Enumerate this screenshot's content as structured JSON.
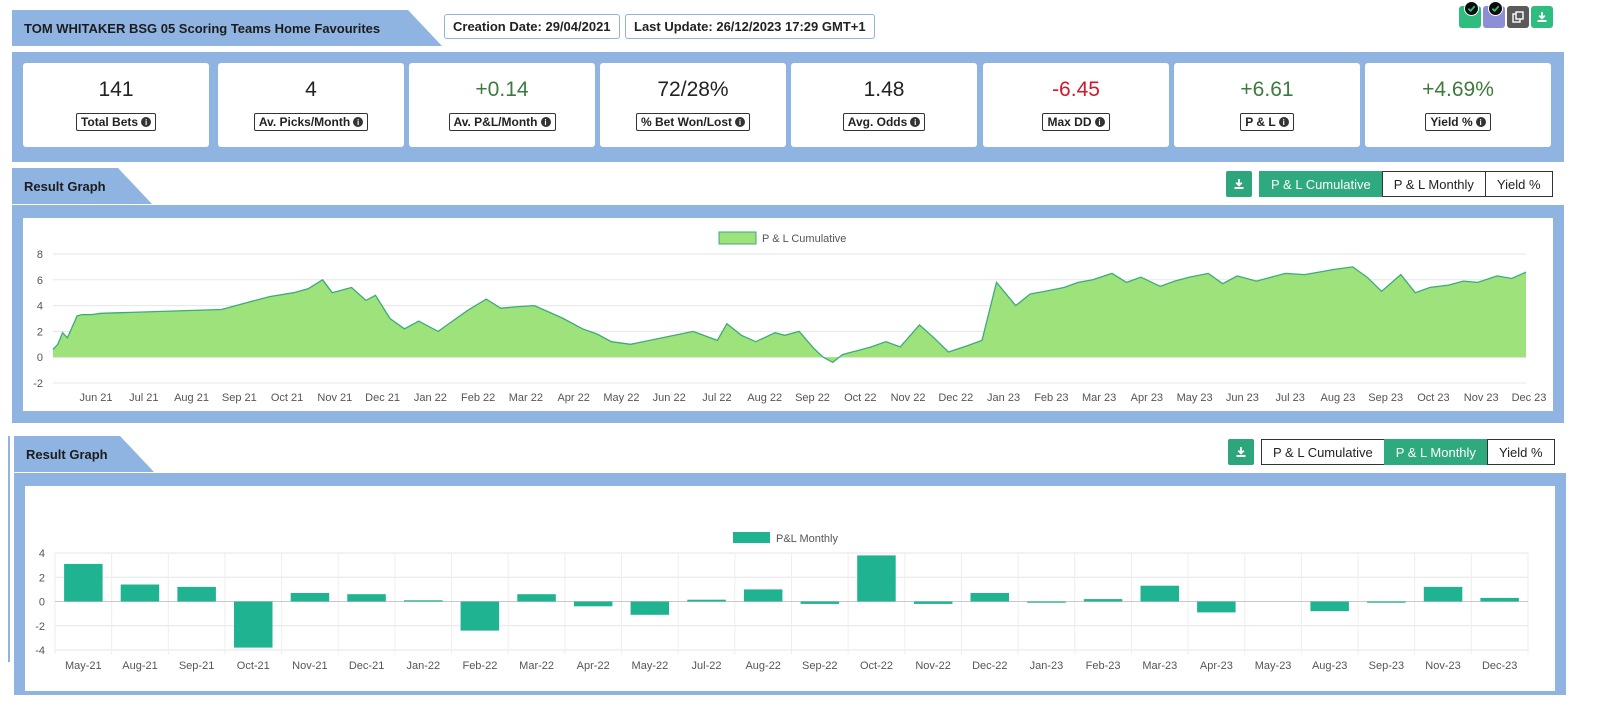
{
  "header": {
    "title": "TOM WHITAKER BSG 05 Scoring Teams Home Favourites",
    "creation_date": "Creation Date: 29/04/2021",
    "last_update": "Last Update: 26/12/2023 17:29 GMT+1"
  },
  "top_icons": [
    "check-icon",
    "check-icon",
    "copy-icon",
    "download-icon"
  ],
  "stats": [
    {
      "value": "141",
      "label": "Total Bets",
      "tone": "neutral"
    },
    {
      "value": "4",
      "label": "Av. Picks/Month",
      "tone": "neutral"
    },
    {
      "value": "+0.14",
      "label": "Av. P&L/Month",
      "tone": "pos"
    },
    {
      "value": "72/28%",
      "label": "% Bet Won/Lost",
      "tone": "neutral"
    },
    {
      "value": "1.48",
      "label": "Avg. Odds",
      "tone": "neutral"
    },
    {
      "value": "-6.45",
      "label": "Max DD",
      "tone": "neg"
    },
    {
      "value": "+6.61",
      "label": "P & L",
      "tone": "pos"
    },
    {
      "value": "+4.69%",
      "label": "Yield %",
      "tone": "pos"
    }
  ],
  "graph1": {
    "title": "Result Graph",
    "buttons": [
      "P & L Cumulative",
      "P & L Monthly",
      "Yield %"
    ],
    "active": 0
  },
  "graph2": {
    "title": "Result Graph",
    "buttons": [
      "P & L Cumulative",
      "P & L Monthly",
      "Yield %"
    ],
    "active": 1
  },
  "colors": {
    "accent": "#2eaa7e",
    "panel": "#8fb4e2",
    "area_fill": "#9de27a",
    "area_line": "#3cab7c",
    "bar": "#1fb391",
    "neg_text": "#d6162c",
    "pos_text": "#3d7a3d"
  },
  "chart_data": [
    {
      "type": "area",
      "legend": "P & L Cumulative",
      "ylim": [
        -2,
        8
      ],
      "yticks": [
        "8",
        "6",
        "4",
        "2",
        "0",
        "-2"
      ],
      "xticks": [
        "Jun 21",
        "Jul 21",
        "Aug 21",
        "Sep 21",
        "Oct 21",
        "Nov 21",
        "Dec 21",
        "Jan 22",
        "Feb 22",
        "Mar 22",
        "Apr 22",
        "May 22",
        "Jun 22",
        "Jul 22",
        "Aug 22",
        "Sep 22",
        "Oct 22",
        "Nov 22",
        "Dec 22",
        "Jan 23",
        "Feb 23",
        "Mar 23",
        "Apr 23",
        "May 23",
        "Jun 23",
        "Jul 23",
        "Aug 23",
        "Sep 23",
        "Oct 23",
        "Nov 23",
        "Dec 23"
      ],
      "x": [
        0.0,
        0.1,
        0.2,
        0.3,
        0.5,
        0.6,
        0.8,
        1.0,
        3.5,
        4.0,
        4.5,
        5.0,
        5.3,
        5.6,
        5.8,
        6.2,
        6.5,
        6.7,
        7.0,
        7.3,
        7.6,
        8.0,
        8.3,
        8.6,
        9.0,
        9.3,
        9.6,
        10.0,
        10.3,
        10.6,
        11.0,
        11.3,
        11.6,
        12.0,
        13.3,
        13.8,
        14.0,
        14.3,
        14.6,
        15.0,
        15.2,
        15.5,
        15.8,
        16.0,
        16.2,
        16.4,
        16.6,
        16.8,
        17.0,
        17.3,
        17.6,
        18.0,
        18.3,
        18.6,
        19.0,
        19.3,
        19.6,
        20.0,
        20.3,
        20.6,
        21.0,
        21.3,
        21.6,
        22.0,
        22.3,
        22.6,
        23.0,
        23.3,
        23.6,
        24.0,
        24.3,
        24.6,
        25.0,
        25.3,
        25.6,
        26.0,
        26.3,
        26.6,
        27.0,
        27.3,
        27.6,
        28.0,
        28.3,
        28.6,
        29.0,
        29.3,
        29.6,
        30.0,
        30.3,
        30.6
      ],
      "values": [
        0.6,
        1.0,
        1.9,
        1.5,
        3.2,
        3.3,
        3.3,
        3.4,
        3.7,
        4.2,
        4.7,
        5.0,
        5.3,
        6.0,
        5.0,
        5.4,
        4.4,
        4.8,
        3.0,
        2.2,
        2.8,
        2.0,
        2.8,
        3.6,
        4.5,
        3.8,
        3.9,
        4.0,
        3.5,
        3.0,
        2.2,
        1.8,
        1.2,
        1.0,
        2.0,
        1.3,
        2.6,
        1.7,
        1.2,
        1.9,
        1.7,
        2.0,
        0.7,
        0.0,
        -0.4,
        0.2,
        0.4,
        0.6,
        0.8,
        1.2,
        0.8,
        2.5,
        1.5,
        0.4,
        0.9,
        1.3,
        5.8,
        4.0,
        4.9,
        5.1,
        5.4,
        5.8,
        6.0,
        6.5,
        5.8,
        6.2,
        5.5,
        5.9,
        6.2,
        6.5,
        5.7,
        6.3,
        5.9,
        6.2,
        6.5,
        6.4,
        6.6,
        6.8,
        7.0,
        6.2,
        5.1,
        6.4,
        5.0,
        5.4,
        5.6,
        5.9,
        5.8,
        6.3,
        6.1,
        6.6
      ]
    },
    {
      "type": "bar",
      "legend": "P&L Monthly",
      "ylim": [
        -4,
        4
      ],
      "yticks": [
        "4",
        "2",
        "0",
        "-2",
        "-4"
      ],
      "categories": [
        "May-21",
        "Aug-21",
        "Sep-21",
        "Oct-21",
        "Nov-21",
        "Dec-21",
        "Jan-22",
        "Feb-22",
        "Mar-22",
        "Apr-22",
        "May-22",
        "Jul-22",
        "Aug-22",
        "Sep-22",
        "Oct-22",
        "Nov-22",
        "Dec-22",
        "Jan-23",
        "Feb-23",
        "Mar-23",
        "Apr-23",
        "May-23",
        "Aug-23",
        "Sep-23",
        "Nov-23",
        "Dec-23"
      ],
      "values": [
        3.1,
        1.4,
        1.2,
        -3.8,
        0.7,
        0.6,
        0.05,
        -2.4,
        0.6,
        -0.4,
        -1.1,
        0.15,
        1.0,
        -0.2,
        3.8,
        -0.2,
        0.7,
        -0.1,
        0.2,
        1.3,
        -0.9,
        0.0,
        -0.8,
        -0.1,
        1.2,
        0.3
      ]
    }
  ]
}
